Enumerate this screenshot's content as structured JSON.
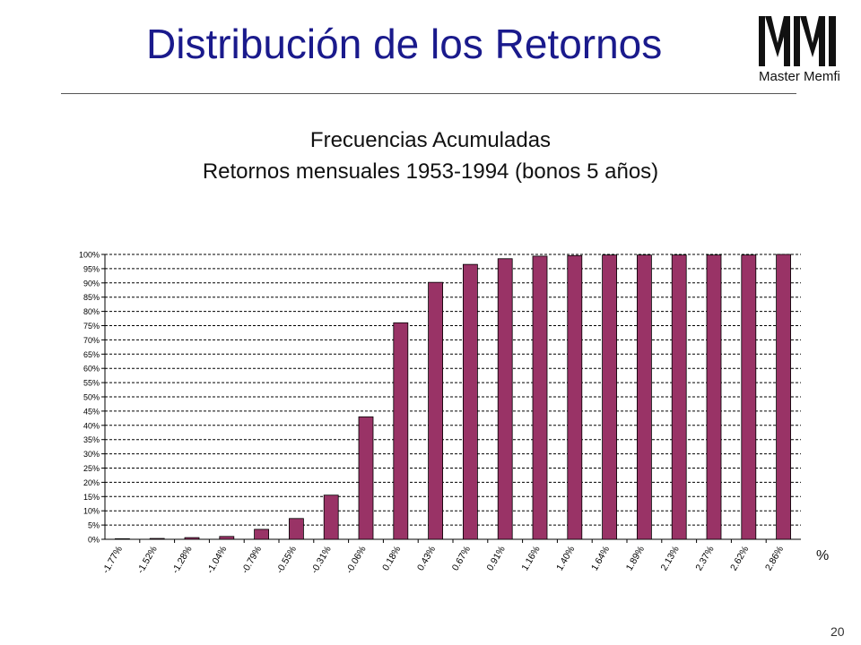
{
  "slide": {
    "title": "Distribución de los Retornos",
    "logo_text": "Master Memfi",
    "logo_vertical_text": "master memfi",
    "page_number": "20"
  },
  "chart_data": {
    "type": "bar",
    "title": "Frecuencias Acumuladas",
    "subtitle": "Retornos mensuales 1953-1994 (bonos 5 años)",
    "xlabel": "%",
    "ylabel": "",
    "categories": [
      "-1.77%",
      "-1.52%",
      "-1.28%",
      "-1.04%",
      "-0.79%",
      "-0.55%",
      "-0.31%",
      "-0.06%",
      "0.18%",
      "0.43%",
      "0.67%",
      "0.91%",
      "1.16%",
      "1.40%",
      "1.64%",
      "1.89%",
      "2.13%",
      "2.37%",
      "2.62%",
      "2.86%"
    ],
    "values": [
      0.2,
      0.3,
      0.6,
      1.0,
      3.5,
      7.3,
      15.5,
      43.0,
      76.0,
      90.2,
      96.5,
      98.5,
      99.4,
      99.6,
      99.8,
      99.8,
      99.8,
      99.8,
      99.8,
      100.0
    ],
    "ylim": [
      0,
      100
    ],
    "yticks": [
      "0%",
      "5%",
      "10%",
      "15%",
      "20%",
      "25%",
      "30%",
      "35%",
      "40%",
      "45%",
      "50%",
      "55%",
      "60%",
      "65%",
      "70%",
      "75%",
      "80%",
      "85%",
      "90%",
      "95%",
      "100%"
    ],
    "grid": true,
    "bar_color": "#993366"
  }
}
